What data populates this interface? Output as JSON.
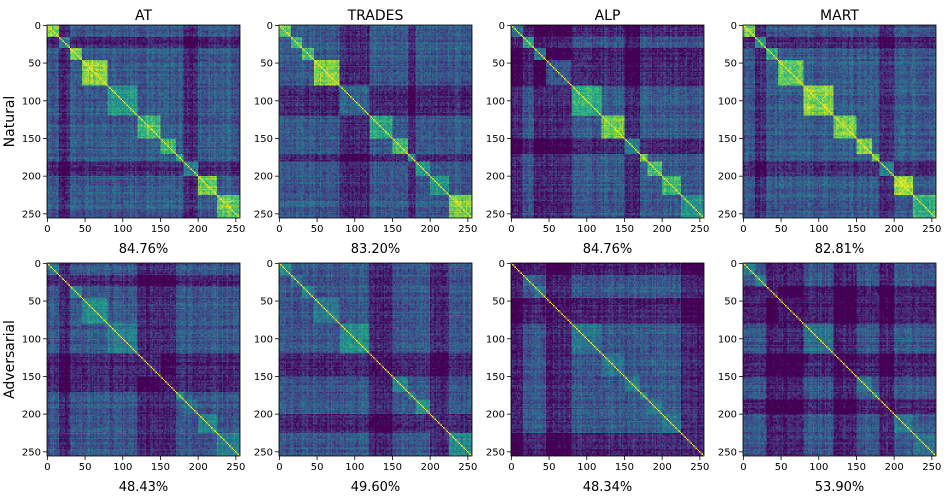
{
  "chart_data": {
    "type": "heatmap",
    "colormap": "viridis",
    "rows": [
      "Natural",
      "Adversarial"
    ],
    "columns": [
      "AT",
      "TRADES",
      "ALP",
      "MART"
    ],
    "axis_range": [
      0,
      255
    ],
    "x_ticks": [
      0,
      50,
      100,
      150,
      200,
      250
    ],
    "y_ticks": [
      0,
      50,
      100,
      150,
      200,
      250
    ],
    "block_boundaries": [
      0,
      15,
      30,
      45,
      80,
      120,
      150,
      170,
      180,
      200,
      225,
      256
    ],
    "panels": [
      {
        "row": "Natural",
        "column": "AT",
        "caption": "84.76%"
      },
      {
        "row": "Natural",
        "column": "TRADES",
        "caption": "83.20%"
      },
      {
        "row": "Natural",
        "column": "ALP",
        "caption": "84.76%"
      },
      {
        "row": "Natural",
        "column": "MART",
        "caption": "82.81%"
      },
      {
        "row": "Adversarial",
        "column": "AT",
        "caption": "48.43%"
      },
      {
        "row": "Adversarial",
        "column": "TRADES",
        "caption": "49.60%"
      },
      {
        "row": "Adversarial",
        "column": "ALP",
        "caption": "48.34%"
      },
      {
        "row": "Adversarial",
        "column": "MART",
        "caption": "53.90%"
      }
    ]
  }
}
